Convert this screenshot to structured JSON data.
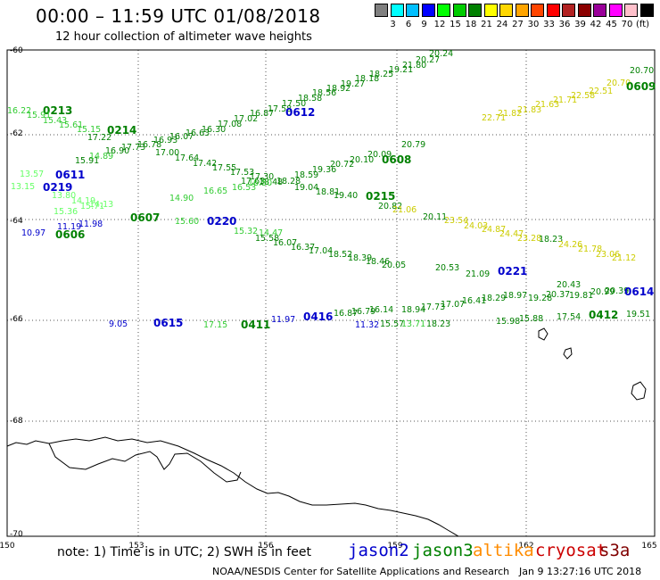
{
  "header": {
    "title": "00:00 – 11:59 UTC 01/08/2018",
    "subtitle": "12 hour collection of altimeter wave heights"
  },
  "colorbar": {
    "colors": [
      "#808080",
      "#00ffff",
      "#00bfff",
      "#0000ff",
      "#00ff00",
      "#00cc00",
      "#008000",
      "#ffff00",
      "#ffd700",
      "#ffa500",
      "#ff4500",
      "#ff0000",
      "#b22222",
      "#8b0000",
      "#990099",
      "#ff00ff",
      "#ffc0cb",
      "#000000"
    ],
    "labels": [
      "3",
      "6",
      "9",
      "12",
      "15",
      "18",
      "21",
      "24",
      "27",
      "30",
      "33",
      "36",
      "39",
      "42",
      "45",
      "70",
      "(ft)"
    ]
  },
  "axes": {
    "lon_labels": [
      "150",
      "153",
      "156",
      "159",
      "162",
      "165"
    ],
    "lat_labels": [
      "-60",
      "-62",
      "-64",
      "-66",
      "-68",
      "-70"
    ]
  },
  "satellite_colors": {
    "jason2": "#0000cc",
    "jason3": "#008000",
    "altika": "#ff8c00",
    "cryosat": "#cc0000",
    "s3a": "#800000"
  },
  "labels": [
    {
      "text": "20.24",
      "c": "#008000"
    },
    {
      "text": "20.27",
      "c": "#008000"
    },
    {
      "text": "21.80",
      "c": "#008000"
    },
    {
      "text": "19.21",
      "c": "#008000"
    },
    {
      "text": "18.25",
      "c": "#008000"
    },
    {
      "text": "18.18",
      "c": "#008000"
    },
    {
      "text": "19.27",
      "c": "#008000"
    },
    {
      "text": "18.92",
      "c": "#008000"
    },
    {
      "text": "18.56",
      "c": "#008000"
    },
    {
      "text": "18.58",
      "c": "#008000"
    },
    {
      "text": "17.50",
      "c": "#008000"
    },
    {
      "text": "17.58",
      "c": "#008000"
    },
    {
      "text": "0612",
      "c": "#0000cc",
      "big": true
    },
    {
      "text": "16.87",
      "c": "#008000"
    },
    {
      "text": "17.02",
      "c": "#008000"
    },
    {
      "text": "17.08",
      "c": "#008000"
    },
    {
      "text": "16.30",
      "c": "#008000"
    },
    {
      "text": "16.63",
      "c": "#008000"
    },
    {
      "text": "16.07",
      "c": "#008000"
    },
    {
      "text": "16.93",
      "c": "#008000"
    },
    {
      "text": "16.78",
      "c": "#008000"
    },
    {
      "text": "17.73",
      "c": "#008000"
    },
    {
      "text": "16.90",
      "c": "#008000"
    },
    {
      "text": "16.22",
      "c": "#33cc33"
    },
    {
      "text": "0213",
      "c": "#008000",
      "big": true
    },
    {
      "text": "15.91",
      "c": "#33cc33"
    },
    {
      "text": "15.43",
      "c": "#33cc33"
    },
    {
      "text": "15.61",
      "c": "#33cc33"
    },
    {
      "text": "15.15",
      "c": "#33cc33"
    },
    {
      "text": "0214",
      "c": "#008000",
      "big": true
    },
    {
      "text": "17.22",
      "c": "#008000"
    },
    {
      "text": "15.91",
      "c": "#008000"
    },
    {
      "text": "14.89",
      "c": "#33cc33"
    },
    {
      "text": "13.57",
      "c": "#66ff66"
    },
    {
      "text": "0611",
      "c": "#0000cc",
      "big": true
    },
    {
      "text": "13.15",
      "c": "#66ff66"
    },
    {
      "text": "0219",
      "c": "#0000cc",
      "big": true
    },
    {
      "text": "17.00",
      "c": "#008000"
    },
    {
      "text": "17.64",
      "c": "#008000"
    },
    {
      "text": "17.42",
      "c": "#008000"
    },
    {
      "text": "17.55",
      "c": "#008000"
    },
    {
      "text": "17.53",
      "c": "#008000"
    },
    {
      "text": "17.30",
      "c": "#008000"
    },
    {
      "text": "17.63",
      "c": "#008000"
    },
    {
      "text": "18.48",
      "c": "#008000"
    },
    {
      "text": "18.28",
      "c": "#008000"
    },
    {
      "text": "18.59",
      "c": "#008000"
    },
    {
      "text": "19.36",
      "c": "#008000"
    },
    {
      "text": "20.72",
      "c": "#008000"
    },
    {
      "text": "20.10",
      "c": "#008000"
    },
    {
      "text": "0608",
      "c": "#008000",
      "big": true
    },
    {
      "text": "20.09",
      "c": "#008000"
    },
    {
      "text": "20.79",
      "c": "#008000"
    },
    {
      "text": "22.71",
      "c": "#cccc00"
    },
    {
      "text": "21.82",
      "c": "#cccc00"
    },
    {
      "text": "21.83",
      "c": "#cccc00"
    },
    {
      "text": "21.63",
      "c": "#cccc00"
    },
    {
      "text": "21.71",
      "c": "#cccc00"
    },
    {
      "text": "22.58",
      "c": "#cccc00"
    },
    {
      "text": "22.51",
      "c": "#cccc00"
    },
    {
      "text": "20.70",
      "c": "#cccc00"
    },
    {
      "text": "20.70",
      "c": "#008000"
    },
    {
      "text": "0609",
      "c": "#008000",
      "big": true
    },
    {
      "text": "13.80",
      "c": "#66ff66"
    },
    {
      "text": "14.19",
      "c": "#66ff66"
    },
    {
      "text": "14.13",
      "c": "#66ff66"
    },
    {
      "text": "15.36",
      "c": "#66ff66"
    },
    {
      "text": "15.71",
      "c": "#66ff66"
    },
    {
      "text": "14.90",
      "c": "#33cc33"
    },
    {
      "text": "16.65",
      "c": "#33cc33"
    },
    {
      "text": "16.53",
      "c": "#33cc33"
    },
    {
      "text": "16.50",
      "c": "#33cc33"
    },
    {
      "text": "19.04",
      "c": "#008000"
    },
    {
      "text": "18.81",
      "c": "#008000"
    },
    {
      "text": "19.40",
      "c": "#008000"
    },
    {
      "text": "0215",
      "c": "#008000",
      "big": true
    },
    {
      "text": "20.82",
      "c": "#008000"
    },
    {
      "text": "21.06",
      "c": "#cccc00"
    },
    {
      "text": "20.11",
      "c": "#008000"
    },
    {
      "text": "23.54",
      "c": "#cccc00"
    },
    {
      "text": "24.03",
      "c": "#cccc00"
    },
    {
      "text": "24.87",
      "c": "#cccc00"
    },
    {
      "text": "24.47",
      "c": "#cccc00"
    },
    {
      "text": "23.28",
      "c": "#cccc00"
    },
    {
      "text": "18.23",
      "c": "#008000"
    },
    {
      "text": "24.26",
      "c": "#cccc00"
    },
    {
      "text": "21.78",
      "c": "#cccc00"
    },
    {
      "text": "23.06",
      "c": "#cccc00"
    },
    {
      "text": "21.12",
      "c": "#cccc00"
    },
    {
      "text": "0607",
      "c": "#008000",
      "big": true
    },
    {
      "text": "15.60",
      "c": "#33cc33"
    },
    {
      "text": "0220",
      "c": "#0000cc",
      "big": true
    },
    {
      "text": "15.32",
      "c": "#33cc33"
    },
    {
      "text": "14.47",
      "c": "#33cc33"
    },
    {
      "text": "10.97",
      "c": "#0000cc"
    },
    {
      "text": "11.19",
      "c": "#0000cc"
    },
    {
      "text": "11.98",
      "c": "#0000cc"
    },
    {
      "text": "0606",
      "c": "#008000",
      "big": true
    },
    {
      "text": "15.58",
      "c": "#008000"
    },
    {
      "text": "16.07",
      "c": "#008000"
    },
    {
      "text": "16.37",
      "c": "#008000"
    },
    {
      "text": "17.04",
      "c": "#008000"
    },
    {
      "text": "18.52",
      "c": "#008000"
    },
    {
      "text": "18.39",
      "c": "#008000"
    },
    {
      "text": "18.46",
      "c": "#008000"
    },
    {
      "text": "20.05",
      "c": "#008000"
    },
    {
      "text": "20.53",
      "c": "#008000"
    },
    {
      "text": "21.09",
      "c": "#008000"
    },
    {
      "text": "0221",
      "c": "#0000cc",
      "big": true
    },
    {
      "text": "20.43",
      "c": "#008000"
    },
    {
      "text": "19.28",
      "c": "#008000"
    },
    {
      "text": "20.99",
      "c": "#008000"
    },
    {
      "text": "20.37",
      "c": "#008000"
    },
    {
      "text": "19.81",
      "c": "#008000"
    },
    {
      "text": "20.39",
      "c": "#008000"
    },
    {
      "text": "0614",
      "c": "#0000cc",
      "big": true
    },
    {
      "text": "9.05",
      "c": "#0000cc"
    },
    {
      "text": "0615",
      "c": "#0000cc",
      "big": true
    },
    {
      "text": "0411",
      "c": "#008000",
      "big": true
    },
    {
      "text": "11.97",
      "c": "#0000cc"
    },
    {
      "text": "0416",
      "c": "#0000cc",
      "big": true
    },
    {
      "text": "16.87",
      "c": "#008000"
    },
    {
      "text": "16.79",
      "c": "#008000"
    },
    {
      "text": "16.14",
      "c": "#008000"
    },
    {
      "text": "18.94",
      "c": "#008000"
    },
    {
      "text": "17.73",
      "c": "#008000"
    },
    {
      "text": "17.07",
      "c": "#008000"
    },
    {
      "text": "16.41",
      "c": "#008000"
    },
    {
      "text": "18.29",
      "c": "#008000"
    },
    {
      "text": "18.97",
      "c": "#008000"
    },
    {
      "text": "11.32",
      "c": "#0000cc"
    },
    {
      "text": "15.57",
      "c": "#008000"
    },
    {
      "text": "13.71",
      "c": "#33cc33"
    },
    {
      "text": "18.23",
      "c": "#008000"
    },
    {
      "text": "15.98",
      "c": "#008000"
    },
    {
      "text": "15.88",
      "c": "#008000"
    },
    {
      "text": "17.54",
      "c": "#008000"
    },
    {
      "text": "0412",
      "c": "#008000",
      "big": true
    },
    {
      "text": "19.51",
      "c": "#008000"
    },
    {
      "text": "17.15",
      "c": "#33cc33"
    }
  ],
  "footer": {
    "note": "note: 1) Time is in UTC; 2) SWH is in feet",
    "satellites": [
      "jason2",
      "jason3",
      "altika",
      "cryosat",
      "s3a"
    ],
    "credit": "NOAA/NESDIS Center for Satellite Applications and Research",
    "timestamp": "Jan  9 13:27:16 UTC 2018"
  }
}
